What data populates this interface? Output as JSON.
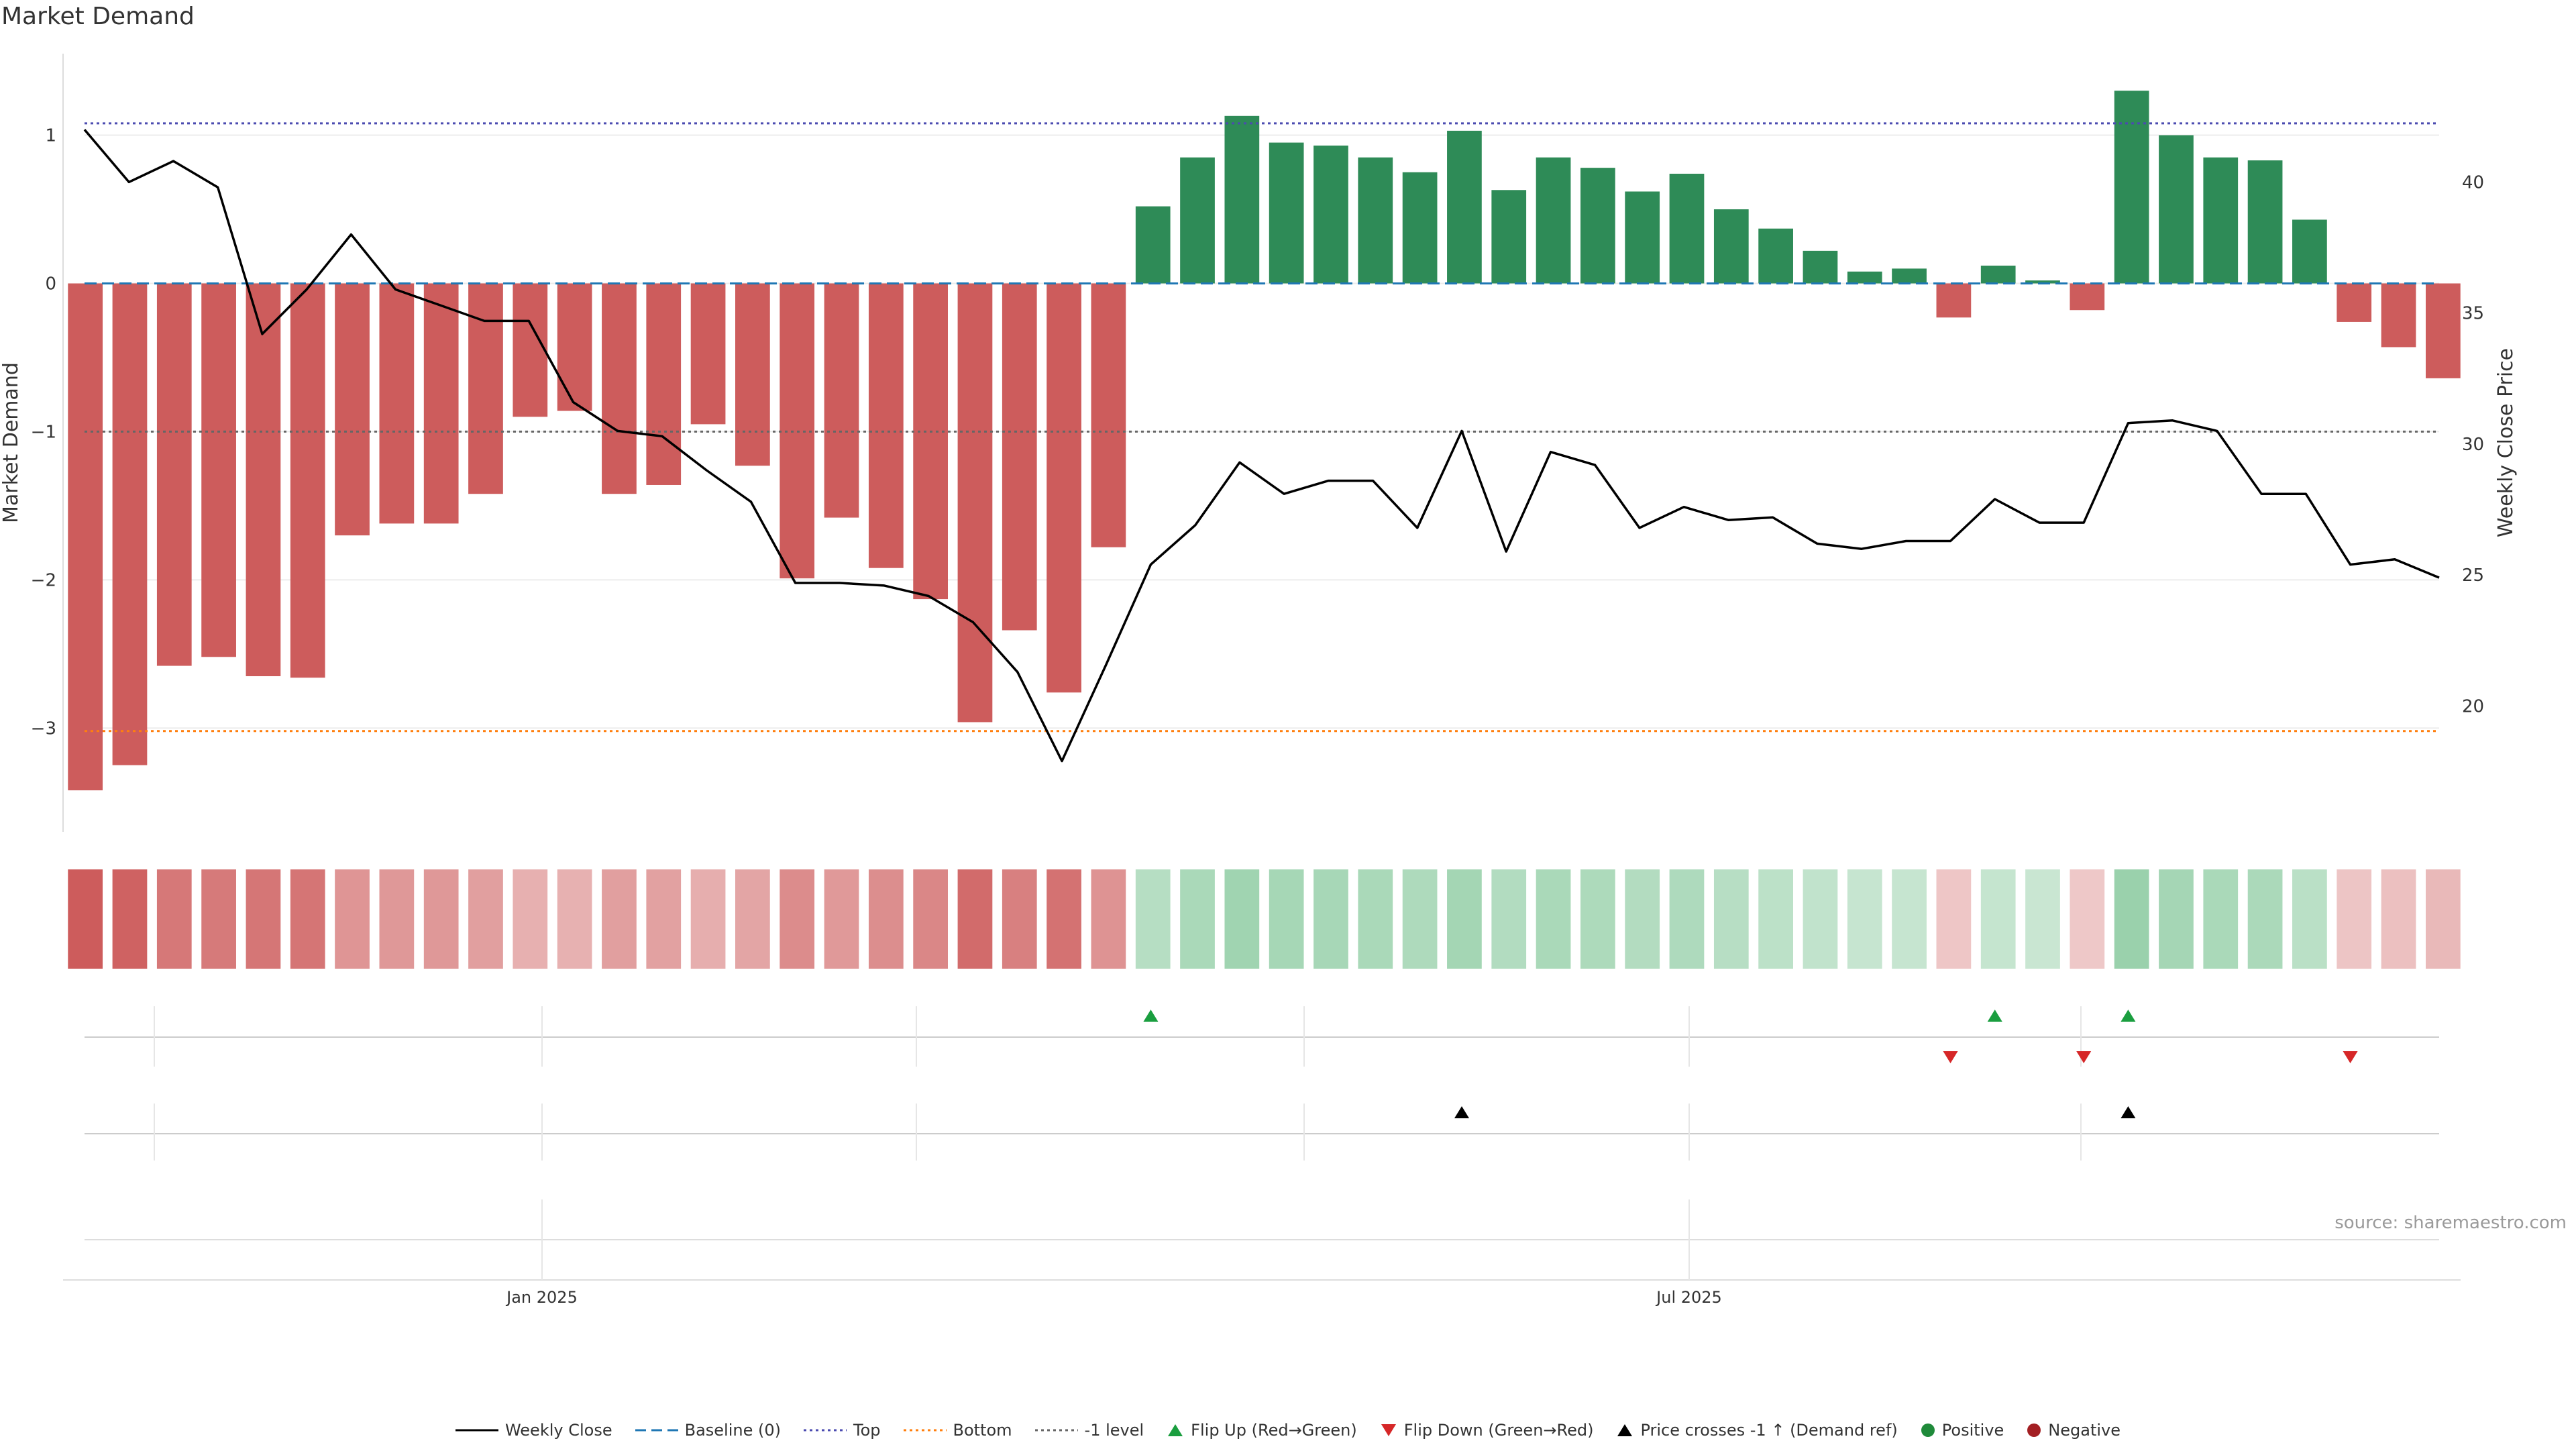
{
  "chart_data": {
    "type": "bar+line",
    "title": "Market Demand",
    "ylabel_left": "Market Demand",
    "ylabel_right": "Weekly Close Price",
    "left_yticks": [
      1,
      0,
      -1,
      -2,
      -3
    ],
    "left_ytick_labels": [
      "1",
      "0",
      "−1",
      "−2",
      "−3"
    ],
    "right_yticks": [
      40,
      35,
      30,
      25,
      20
    ],
    "right_ytick_labels": [
      "40",
      "35",
      "30",
      "25",
      "20"
    ],
    "ylim_left": [
      -3.7,
      1.55
    ],
    "ylim_right": [
      15.2,
      44.9
    ],
    "x_tick_labels": [
      "Jan 2025",
      "Jul 2025"
    ],
    "reference_lines": {
      "top": 1.08,
      "baseline": 0,
      "minus_one": -1,
      "bottom": -3.02
    },
    "colors": {
      "positive": "#2e8b57",
      "negative": "#cd5c5c",
      "line": "#000000",
      "baseline": "#1f77b4",
      "top": "#4b4bb0",
      "bottom": "#ff7f0e",
      "minus_one": "#666666",
      "flip_up": "#1a9e3f",
      "flip_down": "#d62728"
    },
    "demand": [
      -3.42,
      -3.25,
      -2.58,
      -2.52,
      -2.65,
      -2.66,
      -1.7,
      -1.62,
      -1.62,
      -1.42,
      -0.9,
      -0.86,
      -1.42,
      -1.36,
      -0.95,
      -1.23,
      -1.99,
      -1.58,
      -1.92,
      -2.13,
      -2.96,
      -2.34,
      -2.76,
      -1.78,
      0.52,
      0.85,
      1.13,
      0.95,
      0.93,
      0.85,
      0.75,
      1.03,
      0.63,
      0.85,
      0.78,
      0.62,
      0.74,
      0.5,
      0.37,
      0.22,
      0.08,
      0.1,
      -0.23,
      0.12,
      0.02,
      -0.18,
      1.3,
      1.0,
      0.85,
      0.83,
      0.43,
      -0.26,
      -0.43,
      -0.64
    ],
    "weekly_close": [
      42.0,
      40.0,
      40.8,
      39.8,
      34.2,
      35.9,
      38.0,
      35.9,
      35.3,
      34.7,
      34.7,
      31.6,
      30.5,
      30.3,
      29.0,
      27.8,
      24.7,
      24.7,
      24.6,
      24.2,
      23.2,
      21.3,
      17.9,
      21.6,
      25.4,
      26.9,
      29.3,
      28.1,
      28.6,
      28.6,
      26.8,
      30.5,
      25.9,
      29.7,
      29.2,
      26.8,
      27.6,
      27.1,
      27.2,
      26.2,
      26.0,
      26.3,
      26.3,
      27.9,
      27.0,
      27.0,
      30.8,
      30.9,
      30.5,
      28.1,
      28.1,
      25.4,
      25.6,
      24.9
    ],
    "flip_up_weeks": [
      24,
      43,
      46
    ],
    "flip_down_weeks": [
      42,
      45,
      51
    ],
    "price_cross_weeks": [
      31,
      46
    ],
    "legend": [
      "Weekly Close",
      "Baseline (0)",
      "Top",
      "Bottom",
      "-1 level",
      "Flip Up (Red→Green)",
      "Flip Down (Green→Red)",
      "Price crosses -1 ↑ (Demand ref)",
      "Positive",
      "Negative"
    ],
    "source": "source: sharemaestro.com"
  }
}
